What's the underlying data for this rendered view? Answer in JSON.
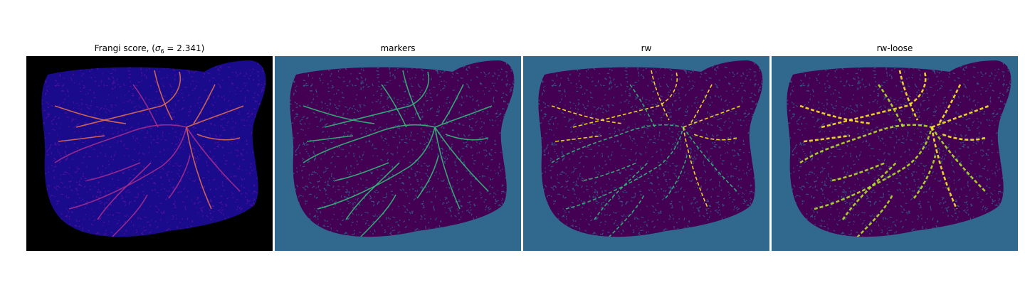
{
  "panels": [
    {
      "title_prefix": "Frangi score, (",
      "title_sigma": "σ",
      "title_sub": "6",
      "title_suffix": " = 2.341)",
      "colormap": "plasma",
      "background": "#000000",
      "tissue": "#1a0a8c",
      "vessel_colors": [
        "#5b14a0",
        "#a52c8e",
        "#e06a4f"
      ]
    },
    {
      "title": "markers",
      "colormap": "viridis",
      "background": "#31688e",
      "tissue": "#440154",
      "vessel_colors": [
        "#31688e",
        "#35b779"
      ]
    },
    {
      "title": "rw",
      "colormap": "viridis",
      "background": "#31688e",
      "tissue": "#440154",
      "vessel_colors": [
        "#31688e",
        "#35b779",
        "#fde725"
      ]
    },
    {
      "title": "rw-loose",
      "colormap": "viridis",
      "background": "#31688e",
      "tissue": "#440154",
      "vessel_colors": [
        "#31688e",
        "#b5de2b",
        "#fde725"
      ]
    }
  ]
}
